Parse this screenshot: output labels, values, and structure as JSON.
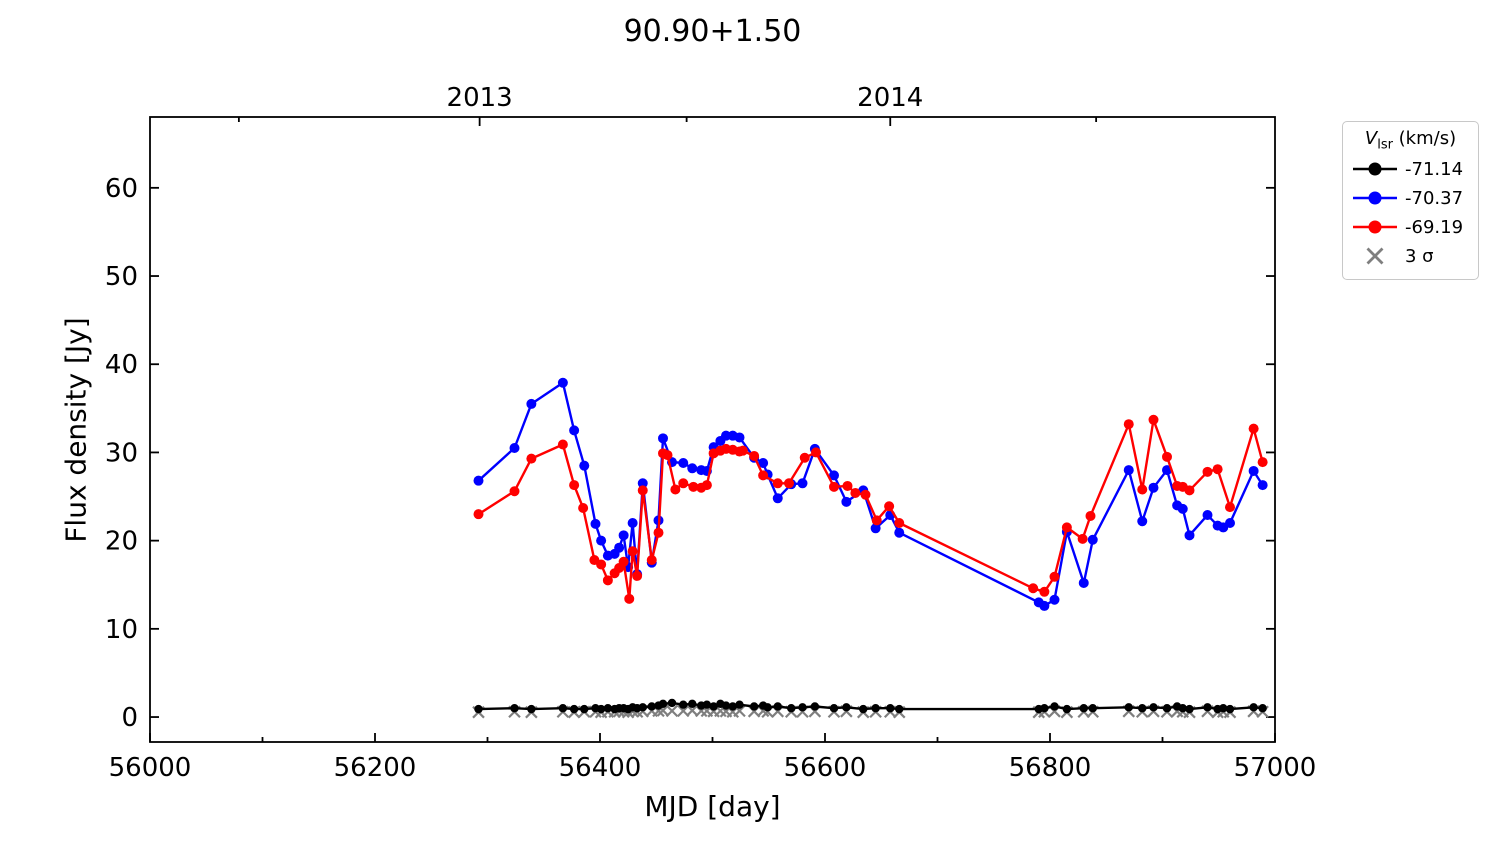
{
  "title": "90.90+1.50",
  "axes": {
    "xlabel": "MJD [day]",
    "ylabel": "Flux density [Jy]",
    "xlim": [
      56000,
      57000
    ],
    "ylim": [
      -2.83,
      68.03
    ],
    "x_major_ticks": [
      56000,
      56200,
      56400,
      56600,
      56800,
      57000
    ],
    "x_major_labels": [
      "56000",
      "56200",
      "56400",
      "56600",
      "56800",
      "57000"
    ],
    "x_minor_ticks": [
      56100,
      56300,
      56500,
      56700,
      56900
    ],
    "y_major_ticks": [
      0,
      10,
      20,
      30,
      40,
      50,
      60
    ],
    "y_major_labels": [
      "0",
      "10",
      "20",
      "30",
      "40",
      "50",
      "60"
    ],
    "top_major_ticks": [
      {
        "mjd": 56293,
        "label": "2013"
      },
      {
        "mjd": 56658,
        "label": "2014"
      }
    ],
    "top_minor_ticks": [
      56079,
      56477,
      56841
    ],
    "grid": false
  },
  "legend": {
    "title_var": "V",
    "title_sub": "lsr",
    "title_unit": " (km/s)",
    "entries": [
      {
        "label": "-71.14",
        "color": "#000000",
        "marker": "circle-line"
      },
      {
        "label": "-70.37",
        "color": "#0000ff",
        "marker": "circle-line"
      },
      {
        "label": "-69.19",
        "color": "#ff0000",
        "marker": "circle-line"
      },
      {
        "label": "3 σ",
        "color": "#7f7f7f",
        "marker": "x"
      }
    ]
  },
  "chart_data": {
    "type": "line",
    "xlabel": "MJD [day]",
    "ylabel": "Flux density [Jy]",
    "title": "90.90+1.50",
    "xlim": [
      56000,
      57000
    ],
    "ylim": [
      -2.83,
      68.03
    ],
    "legend_position": "outside-right",
    "grid": false,
    "series": [
      {
        "name": "3 sigma",
        "id": "sigma",
        "color": "#7f7f7f",
        "marker": "x",
        "line": false,
        "x": [
          56292,
          56324,
          56339,
          56367,
          56377,
          56386,
          56396,
          56401,
          56407,
          56413,
          56417,
          56421,
          56425,
          56429,
          56433,
          56438,
          56446,
          56452,
          56456,
          56464,
          56474,
          56482,
          56490,
          56495,
          56501,
          56507,
          56512,
          56518,
          56524,
          56537,
          56545,
          56549,
          56558,
          56570,
          56580,
          56591,
          56608,
          56619,
          56634,
          56645,
          56658,
          56666,
          56790,
          56795,
          56804,
          56815,
          56830,
          56838,
          56870,
          56882,
          56892,
          56904,
          56913,
          56918,
          56924,
          56940,
          56949,
          56954,
          56960,
          56981,
          56989
        ],
        "y": [
          0.55,
          0.6,
          0.55,
          0.6,
          0.55,
          0.6,
          0.6,
          0.55,
          0.6,
          0.6,
          0.65,
          0.6,
          0.55,
          0.65,
          0.6,
          0.65,
          0.7,
          0.7,
          0.75,
          0.7,
          0.7,
          0.75,
          0.7,
          0.7,
          0.65,
          0.7,
          0.65,
          0.6,
          0.7,
          0.65,
          0.7,
          0.6,
          0.65,
          0.6,
          0.6,
          0.65,
          0.6,
          0.65,
          0.55,
          0.6,
          0.6,
          0.55,
          0.55,
          0.6,
          0.65,
          0.55,
          0.6,
          0.6,
          0.65,
          0.6,
          0.65,
          0.6,
          0.65,
          0.6,
          0.55,
          0.65,
          0.55,
          0.6,
          0.55,
          0.65,
          0.6
        ]
      },
      {
        "name": "-71.14 km/s",
        "id": "black",
        "color": "#000000",
        "marker": "circle",
        "line": true,
        "x": [
          56292,
          56324,
          56339,
          56367,
          56377,
          56386,
          56396,
          56401,
          56407,
          56413,
          56417,
          56421,
          56425,
          56429,
          56433,
          56438,
          56446,
          56452,
          56456,
          56464,
          56474,
          56482,
          56490,
          56495,
          56501,
          56507,
          56512,
          56518,
          56524,
          56537,
          56545,
          56549,
          56558,
          56570,
          56580,
          56591,
          56608,
          56619,
          56634,
          56645,
          56658,
          56666,
          56790,
          56795,
          56804,
          56815,
          56830,
          56838,
          56870,
          56882,
          56892,
          56904,
          56913,
          56918,
          56924,
          56940,
          56949,
          56954,
          56960,
          56981,
          56989
        ],
        "y": [
          0.9,
          1.0,
          0.9,
          1.0,
          0.9,
          0.9,
          1.0,
          0.9,
          1.0,
          0.9,
          1.0,
          1.0,
          0.9,
          1.1,
          1.0,
          1.1,
          1.2,
          1.3,
          1.5,
          1.6,
          1.4,
          1.5,
          1.3,
          1.4,
          1.2,
          1.5,
          1.3,
          1.2,
          1.4,
          1.2,
          1.3,
          1.1,
          1.2,
          1.0,
          1.1,
          1.2,
          1.0,
          1.1,
          0.9,
          1.0,
          1.0,
          0.9,
          0.9,
          1.0,
          1.2,
          0.9,
          1.0,
          1.0,
          1.1,
          1.0,
          1.1,
          1.0,
          1.2,
          1.0,
          0.9,
          1.1,
          0.9,
          1.0,
          0.9,
          1.1,
          1.0
        ]
      },
      {
        "name": "-70.37 km/s",
        "id": "blue",
        "color": "#0000ff",
        "marker": "circle",
        "line": true,
        "x": [
          56292,
          56324,
          56339,
          56367,
          56377,
          56386,
          56396,
          56401,
          56407,
          56413,
          56417,
          56421,
          56425,
          56429,
          56433,
          56438,
          56446,
          56452,
          56456,
          56464,
          56474,
          56482,
          56490,
          56495,
          56501,
          56507,
          56512,
          56518,
          56524,
          56537,
          56545,
          56549,
          56558,
          56570,
          56580,
          56591,
          56608,
          56619,
          56634,
          56645,
          56658,
          56666,
          56790,
          56795,
          56804,
          56815,
          56830,
          56838,
          56870,
          56882,
          56892,
          56904,
          56913,
          56918,
          56924,
          56940,
          56949,
          56954,
          56960,
          56981,
          56989
        ],
        "y": [
          26.8,
          30.5,
          35.5,
          37.9,
          32.5,
          28.5,
          21.9,
          20.0,
          18.3,
          18.5,
          19.2,
          20.6,
          17.0,
          22.0,
          16.2,
          26.5,
          17.5,
          22.3,
          31.6,
          28.9,
          28.8,
          28.2,
          28.0,
          27.9,
          30.6,
          31.3,
          31.9,
          31.9,
          31.7,
          29.4,
          28.8,
          27.5,
          24.8,
          26.4,
          26.5,
          30.4,
          27.4,
          24.4,
          25.7,
          21.4,
          22.9,
          20.9,
          13.0,
          12.6,
          13.3,
          21.0,
          15.2,
          20.1,
          28.0,
          22.2,
          26.0,
          28.0,
          24.0,
          23.6,
          20.6,
          22.9,
          21.7,
          21.5,
          22.0,
          27.9,
          26.3
        ]
      },
      {
        "name": "-69.19 km/s",
        "id": "red",
        "color": "#ff0000",
        "marker": "circle",
        "line": true,
        "x": [
          56292,
          56324,
          56339,
          56367,
          56377,
          56385,
          56395,
          56401,
          56407,
          56413,
          56417,
          56421,
          56426,
          56429,
          56433,
          56438,
          56446,
          56452,
          56456,
          56460,
          56467,
          56474,
          56483,
          56490,
          56495,
          56501,
          56507,
          56512,
          56518,
          56524,
          56527,
          56537,
          56545,
          56558,
          56568,
          56582,
          56592,
          56608,
          56620,
          56627,
          56636,
          56646,
          56657,
          56666,
          56785,
          56795,
          56804,
          56815,
          56829,
          56836,
          56870,
          56882,
          56892,
          56904,
          56913,
          56918,
          56924,
          56940,
          56949,
          56960,
          56981,
          56989
        ],
        "y": [
          23.0,
          25.6,
          29.3,
          30.9,
          26.3,
          23.7,
          17.8,
          17.3,
          15.5,
          16.3,
          16.9,
          17.6,
          13.4,
          18.8,
          16.0,
          25.7,
          17.8,
          20.9,
          29.9,
          29.7,
          25.8,
          26.5,
          26.1,
          26.0,
          26.3,
          29.9,
          30.2,
          30.4,
          30.3,
          30.1,
          30.2,
          29.6,
          27.4,
          26.5,
          26.5,
          29.4,
          30.0,
          26.1,
          26.2,
          25.4,
          25.2,
          22.3,
          23.9,
          22.0,
          14.6,
          14.2,
          15.9,
          21.5,
          20.2,
          22.8,
          33.2,
          25.8,
          33.7,
          29.5,
          26.2,
          26.1,
          25.7,
          27.8,
          28.1,
          23.8,
          32.7,
          28.9
        ]
      }
    ]
  }
}
